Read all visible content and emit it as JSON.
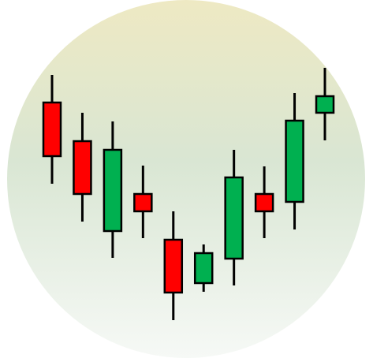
{
  "chart_data": {
    "type": "candlestick",
    "ylim": [
      0,
      454
    ],
    "up_color": "#00b050",
    "down_color": "#ff0000",
    "open": [
      324,
      275,
      161,
      208,
      150,
      95,
      126,
      208,
      198,
      311
    ],
    "high": [
      359,
      311,
      300,
      244,
      186,
      144,
      264,
      243,
      336,
      368
    ],
    "low": [
      221,
      173,
      127,
      152,
      48,
      84,
      92,
      152,
      163,
      276
    ],
    "close": [
      256,
      208,
      264,
      186,
      83,
      133,
      229,
      186,
      301,
      332
    ]
  }
}
